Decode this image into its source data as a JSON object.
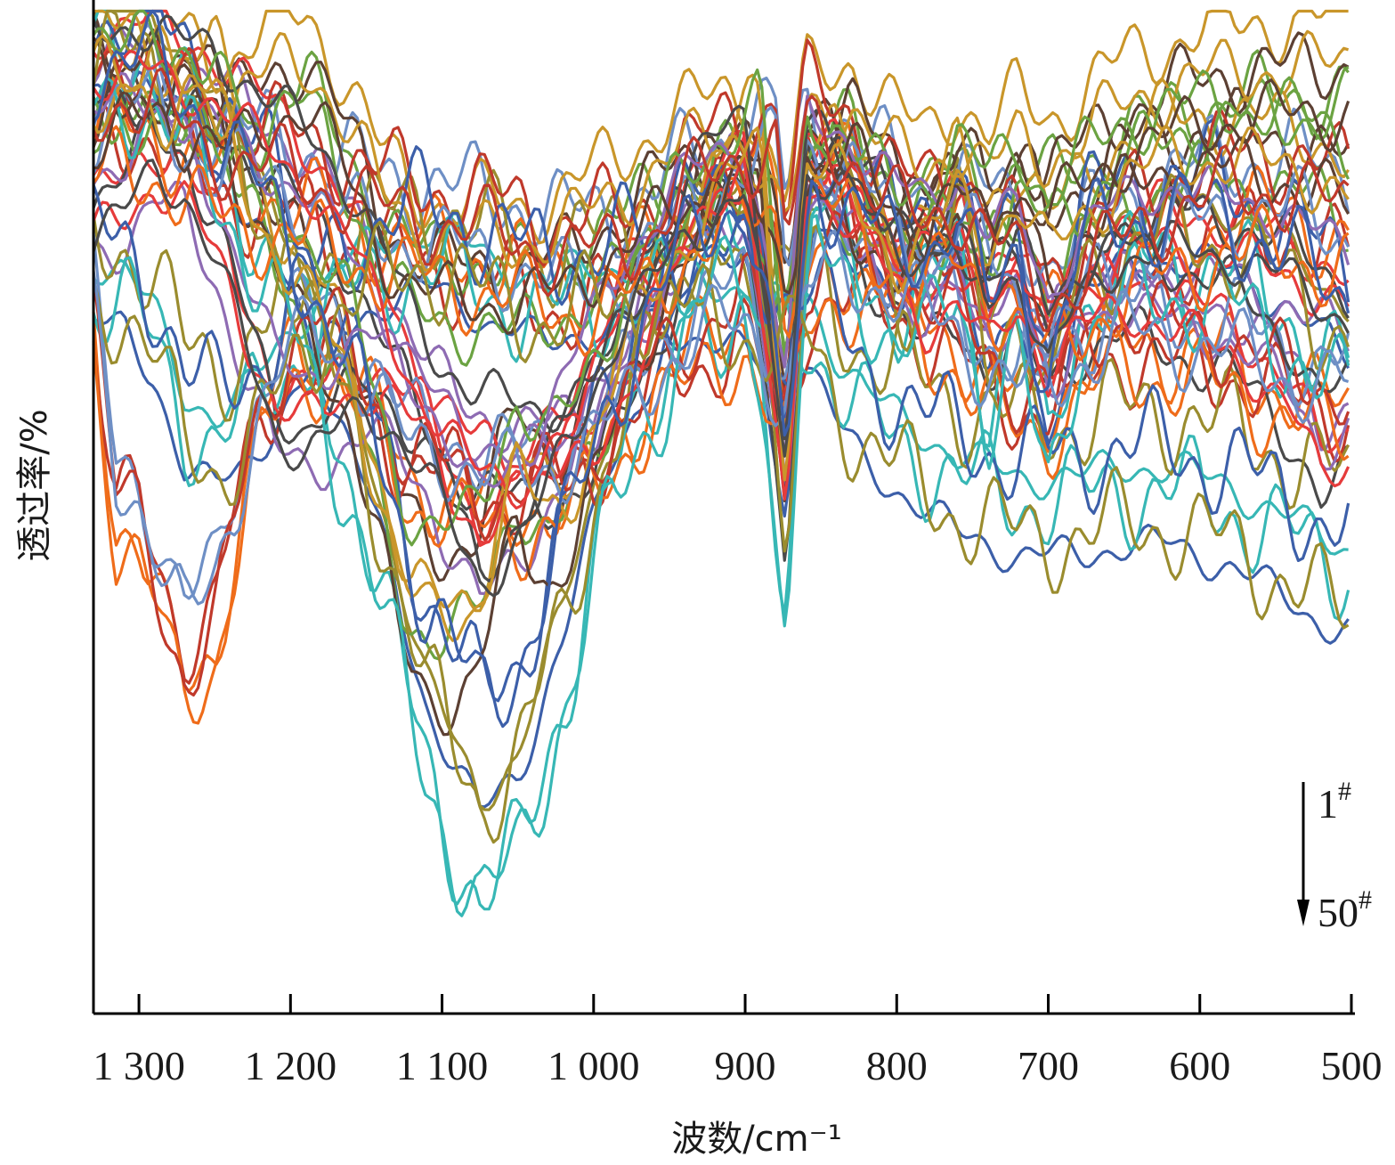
{
  "chart_data": {
    "type": "line",
    "title": "",
    "xlabel": "波数/cm⁻¹",
    "ylabel": "透过率/%",
    "xlim": [
      1330,
      500
    ],
    "x_reversed": true,
    "xticks": [
      {
        "value": 1300,
        "label": "1 300"
      },
      {
        "value": 1200,
        "label": "1 200"
      },
      {
        "value": 1100,
        "label": "1 100"
      },
      {
        "value": 1000,
        "label": "1 000"
      },
      {
        "value": 900,
        "label": "900"
      },
      {
        "value": 800,
        "label": "800"
      },
      {
        "value": 700,
        "label": "700"
      },
      {
        "value": 600,
        "label": "600"
      },
      {
        "value": 500,
        "label": "500"
      }
    ],
    "y_tick_labels": "none",
    "ylim": [
      0,
      100
    ],
    "grid": false,
    "legend": {
      "placement": "right, lower",
      "from_label": "1",
      "to_label": "50",
      "marker": "#"
    },
    "series_count": 50,
    "palette": [
      "#3c5fa9",
      "#c0392b",
      "#6ba342",
      "#8e6bb3",
      "#37b7b5",
      "#ef6c1a",
      "#5c4033",
      "#e63b3b",
      "#9a8c2e",
      "#6e8fc5",
      "#c9962a",
      "#4a4a4a"
    ],
    "features": [
      {
        "x": 1295,
        "y": 92
      },
      {
        "x": 1075,
        "y": 22
      },
      {
        "x": 873,
        "y": 42
      },
      {
        "x": 800,
        "y": 70
      },
      {
        "x": 730,
        "y": 63
      },
      {
        "x": 698,
        "y": 55
      },
      {
        "x": 530,
        "y": 60
      }
    ],
    "archetypes": [
      [
        [
          1330,
          95
        ],
        [
          1300,
          96
        ],
        [
          1260,
          90
        ],
        [
          1200,
          75
        ],
        [
          1150,
          55
        ],
        [
          1110,
          33
        ],
        [
          1075,
          22
        ],
        [
          1050,
          26
        ],
        [
          1020,
          40
        ],
        [
          990,
          57
        ],
        [
          960,
          67
        ],
        [
          930,
          77
        ],
        [
          900,
          80
        ],
        [
          873,
          50
        ],
        [
          855,
          82
        ],
        [
          820,
          78
        ],
        [
          800,
          72
        ],
        [
          780,
          74
        ],
        [
          760,
          80
        ],
        [
          740,
          66
        ],
        [
          720,
          72
        ],
        [
          700,
          60
        ],
        [
          680,
          74
        ],
        [
          650,
          77
        ],
        [
          620,
          78
        ],
        [
          580,
          77
        ],
        [
          540,
          73
        ],
        [
          520,
          70
        ],
        [
          500,
          68
        ]
      ],
      [
        [
          1330,
          88
        ],
        [
          1310,
          90
        ],
        [
          1290,
          89
        ],
        [
          1260,
          85
        ],
        [
          1230,
          83
        ],
        [
          1200,
          82
        ],
        [
          1170,
          80
        ],
        [
          1140,
          78
        ],
        [
          1110,
          77
        ],
        [
          1080,
          76
        ],
        [
          1050,
          75
        ],
        [
          1020,
          73
        ],
        [
          990,
          74
        ],
        [
          960,
          76
        ],
        [
          940,
          80
        ],
        [
          920,
          82
        ],
        [
          900,
          84
        ],
        [
          880,
          85
        ],
        [
          873,
          74
        ],
        [
          860,
          86
        ],
        [
          830,
          84
        ],
        [
          800,
          78
        ],
        [
          780,
          76
        ],
        [
          760,
          79
        ],
        [
          730,
          74
        ],
        [
          700,
          68
        ],
        [
          690,
          70
        ],
        [
          660,
          74
        ],
        [
          620,
          78
        ],
        [
          580,
          80
        ],
        [
          540,
          80
        ],
        [
          510,
          78
        ],
        [
          500,
          78
        ]
      ],
      [
        [
          1330,
          90
        ],
        [
          1290,
          95
        ],
        [
          1270,
          92
        ],
        [
          1240,
          90
        ],
        [
          1210,
          94
        ],
        [
          1190,
          95
        ],
        [
          1170,
          90
        ],
        [
          1140,
          80
        ],
        [
          1120,
          76
        ],
        [
          1100,
          75
        ],
        [
          1075,
          75
        ],
        [
          1050,
          74
        ],
        [
          1020,
          76
        ],
        [
          1000,
          78
        ],
        [
          980,
          80
        ],
        [
          950,
          84
        ],
        [
          920,
          86
        ],
        [
          900,
          87
        ],
        [
          873,
          75
        ],
        [
          860,
          88
        ],
        [
          830,
          90
        ],
        [
          800,
          84
        ],
        [
          780,
          82
        ],
        [
          760,
          86
        ],
        [
          740,
          82
        ],
        [
          720,
          86
        ],
        [
          700,
          84
        ],
        [
          680,
          86
        ],
        [
          650,
          90
        ],
        [
          600,
          93
        ],
        [
          560,
          94
        ],
        [
          520,
          94
        ],
        [
          500,
          95
        ]
      ],
      [
        [
          1330,
          96
        ],
        [
          1300,
          97
        ],
        [
          1270,
          95
        ],
        [
          1250,
          94
        ],
        [
          1220,
          90
        ],
        [
          1190,
          86
        ],
        [
          1160,
          80
        ],
        [
          1140,
          74
        ],
        [
          1120,
          67
        ],
        [
          1100,
          62
        ],
        [
          1080,
          59
        ],
        [
          1060,
          58
        ],
        [
          1040,
          57
        ],
        [
          1020,
          58
        ],
        [
          1000,
          60
        ],
        [
          980,
          66
        ],
        [
          960,
          72
        ],
        [
          940,
          80
        ],
        [
          920,
          85
        ],
        [
          900,
          88
        ],
        [
          873,
          52
        ],
        [
          860,
          86
        ],
        [
          840,
          84
        ],
        [
          800,
          76
        ],
        [
          780,
          72
        ],
        [
          760,
          75
        ],
        [
          740,
          70
        ],
        [
          720,
          74
        ],
        [
          700,
          68
        ],
        [
          680,
          72
        ],
        [
          650,
          74
        ],
        [
          620,
          72
        ],
        [
          580,
          70
        ],
        [
          540,
          64
        ],
        [
          520,
          58
        ],
        [
          500,
          60
        ]
      ],
      [
        [
          1330,
          75
        ],
        [
          1310,
          74
        ],
        [
          1290,
          70
        ],
        [
          1270,
          62
        ],
        [
          1250,
          60
        ],
        [
          1230,
          62
        ],
        [
          1210,
          66
        ],
        [
          1190,
          70
        ],
        [
          1170,
          74
        ],
        [
          1150,
          76
        ],
        [
          1130,
          77
        ],
        [
          1110,
          78
        ],
        [
          1090,
          77
        ],
        [
          1070,
          75
        ],
        [
          1050,
          74
        ],
        [
          1030,
          73
        ],
        [
          1010,
          74
        ],
        [
          990,
          74
        ],
        [
          970,
          75
        ],
        [
          940,
          74
        ],
        [
          920,
          73
        ],
        [
          900,
          72
        ],
        [
          873,
          70
        ],
        [
          860,
          72
        ],
        [
          840,
          66
        ],
        [
          820,
          62
        ],
        [
          800,
          60
        ],
        [
          780,
          58
        ],
        [
          760,
          56
        ],
        [
          740,
          55
        ],
        [
          720,
          54
        ],
        [
          700,
          54
        ],
        [
          680,
          54
        ],
        [
          650,
          55
        ],
        [
          620,
          55
        ],
        [
          580,
          53
        ],
        [
          540,
          50
        ],
        [
          520,
          48
        ],
        [
          500,
          47
        ]
      ],
      [
        [
          1330,
          70
        ],
        [
          1315,
          52
        ],
        [
          1300,
          50
        ],
        [
          1290,
          46
        ],
        [
          1280,
          40
        ],
        [
          1270,
          37
        ],
        [
          1260,
          38
        ],
        [
          1250,
          40
        ],
        [
          1240,
          48
        ],
        [
          1220,
          60
        ],
        [
          1200,
          66
        ],
        [
          1180,
          68
        ],
        [
          1160,
          65
        ],
        [
          1140,
          60
        ],
        [
          1120,
          55
        ],
        [
          1100,
          55
        ],
        [
          1080,
          53
        ],
        [
          1060,
          52
        ],
        [
          1040,
          53
        ],
        [
          1020,
          54
        ],
        [
          1000,
          56
        ],
        [
          980,
          60
        ],
        [
          960,
          64
        ],
        [
          940,
          66
        ],
        [
          920,
          68
        ],
        [
          900,
          70
        ],
        [
          873,
          60
        ],
        [
          860,
          72
        ],
        [
          840,
          75
        ],
        [
          820,
          74
        ],
        [
          800,
          72
        ],
        [
          780,
          70
        ],
        [
          760,
          68
        ],
        [
          740,
          64
        ],
        [
          720,
          62
        ],
        [
          700,
          62
        ],
        [
          680,
          65
        ],
        [
          650,
          68
        ],
        [
          620,
          67
        ],
        [
          580,
          66
        ],
        [
          540,
          63
        ],
        [
          520,
          62
        ],
        [
          500,
          62
        ]
      ],
      [
        [
          1330,
          95
        ],
        [
          1305,
          93
        ],
        [
          1290,
          92
        ],
        [
          1280,
          90
        ],
        [
          1265,
          93
        ],
        [
          1250,
          92
        ],
        [
          1240,
          88
        ],
        [
          1220,
          80
        ],
        [
          1200,
          74
        ],
        [
          1180,
          70
        ],
        [
          1160,
          64
        ],
        [
          1140,
          52
        ],
        [
          1130,
          46
        ],
        [
          1120,
          42
        ],
        [
          1110,
          40
        ],
        [
          1100,
          40
        ],
        [
          1090,
          40
        ],
        [
          1080,
          41
        ],
        [
          1070,
          45
        ],
        [
          1060,
          50
        ],
        [
          1050,
          55
        ],
        [
          1040,
          52
        ],
        [
          1030,
          50
        ],
        [
          1010,
          54
        ],
        [
          990,
          62
        ],
        [
          970,
          70
        ],
        [
          950,
          76
        ],
        [
          930,
          80
        ],
        [
          910,
          84
        ],
        [
          890,
          87
        ],
        [
          873,
          55
        ],
        [
          860,
          86
        ],
        [
          840,
          84
        ],
        [
          820,
          80
        ],
        [
          800,
          76
        ],
        [
          780,
          78
        ],
        [
          760,
          82
        ],
        [
          740,
          78
        ],
        [
          720,
          82
        ],
        [
          700,
          76
        ],
        [
          680,
          80
        ],
        [
          650,
          84
        ],
        [
          620,
          86
        ],
        [
          580,
          86
        ],
        [
          540,
          85
        ],
        [
          520,
          84
        ],
        [
          500,
          82
        ]
      ],
      [
        [
          1330,
          78
        ],
        [
          1310,
          80
        ],
        [
          1290,
          84
        ],
        [
          1270,
          82
        ],
        [
          1250,
          76
        ],
        [
          1230,
          68
        ],
        [
          1210,
          60
        ],
        [
          1190,
          58
        ],
        [
          1170,
          60
        ],
        [
          1150,
          62
        ],
        [
          1130,
          60
        ],
        [
          1110,
          56
        ],
        [
          1090,
          50
        ],
        [
          1075,
          46
        ],
        [
          1060,
          48
        ],
        [
          1040,
          52
        ],
        [
          1020,
          58
        ],
        [
          1000,
          64
        ],
        [
          980,
          70
        ],
        [
          960,
          74
        ],
        [
          940,
          78
        ],
        [
          920,
          80
        ],
        [
          900,
          82
        ],
        [
          873,
          58
        ],
        [
          860,
          84
        ],
        [
          840,
          83
        ],
        [
          820,
          80
        ],
        [
          800,
          77
        ],
        [
          780,
          76
        ],
        [
          760,
          78
        ],
        [
          740,
          72
        ],
        [
          720,
          75
        ],
        [
          700,
          66
        ],
        [
          680,
          72
        ],
        [
          650,
          76
        ],
        [
          620,
          77
        ],
        [
          580,
          76
        ],
        [
          540,
          74
        ],
        [
          520,
          72
        ],
        [
          500,
          70
        ]
      ]
    ]
  }
}
